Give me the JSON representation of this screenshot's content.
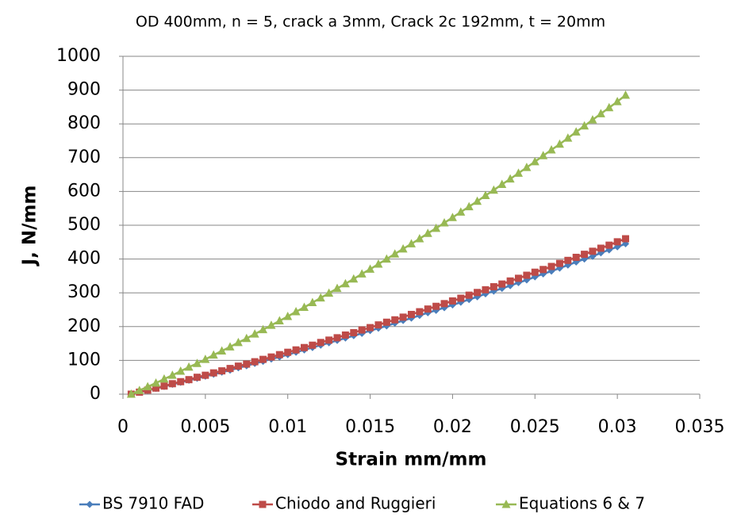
{
  "chart_data": {
    "type": "line",
    "title": "OD  400mm, n = 5, crack a  3mm, Crack 2c  192mm, t = 20mm",
    "x_label": "Strain mm/mm",
    "y_label": "J, N/mm",
    "x": [
      0.0005,
      0.001,
      0.0015,
      0.002,
      0.0025,
      0.003,
      0.0035,
      0.004,
      0.0045,
      0.005,
      0.0055,
      0.006,
      0.0065,
      0.007,
      0.0075,
      0.008,
      0.0085,
      0.009,
      0.0095,
      0.01,
      0.0105,
      0.011,
      0.0115,
      0.012,
      0.0125,
      0.013,
      0.0135,
      0.014,
      0.0145,
      0.015,
      0.0155,
      0.016,
      0.0165,
      0.017,
      0.0175,
      0.018,
      0.0185,
      0.019,
      0.0195,
      0.02,
      0.0205,
      0.021,
      0.0215,
      0.022,
      0.0225,
      0.023,
      0.0235,
      0.024,
      0.0245,
      0.025,
      0.0255,
      0.026,
      0.0265,
      0.027,
      0.0275,
      0.028,
      0.0285,
      0.029,
      0.0295,
      0.03,
      0.0305
    ],
    "series": [
      {
        "name": "BS 7910 FAD",
        "color": "#4a7ebb",
        "marker": "diamond",
        "values": [
          0,
          6,
          11,
          17,
          23,
          29,
          35,
          41,
          47,
          53,
          59,
          65,
          71,
          78,
          84,
          91,
          97,
          104,
          110,
          117,
          124,
          131,
          138,
          145,
          152,
          159,
          166,
          173,
          180,
          188,
          195,
          202,
          210,
          218,
          225,
          233,
          241,
          248,
          256,
          264,
          272,
          280,
          288,
          297,
          305,
          313,
          321,
          330,
          338,
          347,
          356,
          364,
          373,
          382,
          391,
          400,
          408,
          418,
          427,
          436,
          445
        ]
      },
      {
        "name": "Chiodo and Ruggieri",
        "color": "#be4b48",
        "marker": "square",
        "values": [
          0,
          6,
          12,
          18,
          24,
          31,
          37,
          43,
          50,
          56,
          63,
          69,
          76,
          83,
          89,
          96,
          103,
          110,
          117,
          124,
          131,
          138,
          145,
          153,
          160,
          167,
          175,
          182,
          190,
          197,
          205,
          213,
          220,
          228,
          236,
          244,
          252,
          260,
          268,
          276,
          284,
          293,
          301,
          309,
          318,
          326,
          335,
          343,
          352,
          361,
          369,
          378,
          387,
          396,
          405,
          414,
          423,
          432,
          441,
          451,
          460
        ]
      },
      {
        "name": "Equations 6 & 7",
        "color": "#98b954",
        "marker": "triangle",
        "values": [
          0,
          11,
          22,
          33,
          45,
          56,
          68,
          80,
          91,
          103,
          116,
          128,
          140,
          153,
          165,
          178,
          191,
          204,
          217,
          230,
          244,
          257,
          271,
          285,
          299,
          313,
          327,
          341,
          356,
          370,
          385,
          400,
          415,
          430,
          445,
          460,
          476,
          491,
          507,
          523,
          539,
          555,
          571,
          588,
          604,
          621,
          637,
          654,
          671,
          688,
          706,
          723,
          740,
          758,
          776,
          794,
          812,
          830,
          848,
          866,
          885
        ]
      }
    ],
    "xlim": [
      0,
      0.035
    ],
    "xticks": [
      0,
      0.005,
      0.01,
      0.015,
      0.02,
      0.025,
      0.03,
      0.035
    ],
    "ylim": [
      0,
      1000
    ],
    "yticks": [
      0,
      100,
      200,
      300,
      400,
      500,
      600,
      700,
      800,
      900,
      1000
    ],
    "grid": true,
    "legend": "bottom"
  }
}
